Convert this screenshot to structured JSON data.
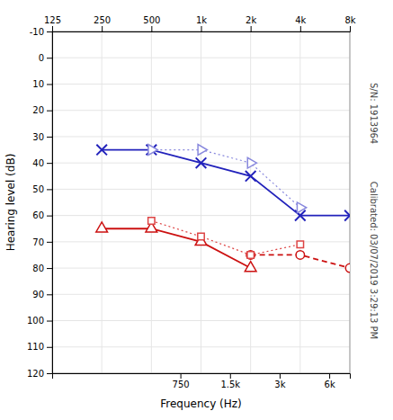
{
  "chart_data": {
    "type": "line",
    "xlabel": "Frequency (Hz)",
    "ylabel": "Hearing level (dB)",
    "log": "x",
    "grid": true,
    "xlim": [
      125,
      8000
    ],
    "xticks": [
      125,
      250,
      500,
      {
        "value": 1000,
        "label": "1k"
      },
      {
        "value": 2000,
        "label": "2k"
      },
      {
        "value": 4000,
        "label": "4k"
      },
      {
        "value": 8000,
        "label": "8k"
      }
    ],
    "x2lim": [
      125,
      8000
    ],
    "x2ticks": [
      750,
      {
        "value": 1500,
        "label": "1.5k"
      },
      {
        "value": 3000,
        "label": "3k"
      },
      {
        "value": 6000,
        "label": "6k"
      }
    ],
    "ylim": [
      120,
      -10
    ],
    "yticks": [
      -10,
      0,
      10,
      20,
      30,
      40,
      50,
      60,
      70,
      80,
      90,
      100,
      110,
      120
    ],
    "series": [
      {
        "color": "#2222bb",
        "marker": "x",
        "line_style": "solid",
        "x": [
          250,
          500,
          1000,
          2000,
          4000,
          8000
        ],
        "values": [
          35,
          35,
          40,
          45,
          60,
          60
        ]
      },
      {
        "color": "#8888dd",
        "marker": "triangle-right",
        "line_style": "dotted",
        "x": [
          500,
          1000,
          2000,
          4000
        ],
        "values": [
          35,
          35,
          40,
          57
        ]
      },
      {
        "color": "#cc1111",
        "marker": "triangle-up",
        "line_style": "solid",
        "x": [
          250,
          500,
          1000,
          2000
        ],
        "values": [
          65,
          65,
          70,
          80
        ]
      },
      {
        "color": "#cc1111",
        "marker": "circle",
        "line_style": "dashed",
        "x": [
          2000,
          4000,
          8000
        ],
        "values": [
          75,
          75,
          80
        ]
      },
      {
        "color": "#dd4444",
        "marker": "square",
        "line_style": "dotted",
        "x": [
          500,
          1000,
          2000,
          4000
        ],
        "values": [
          62,
          68,
          75,
          71
        ]
      }
    ],
    "annotations": [
      "S/N: 1913964",
      "Calibrated: 03/07/2019 3:29:13 PM"
    ]
  }
}
